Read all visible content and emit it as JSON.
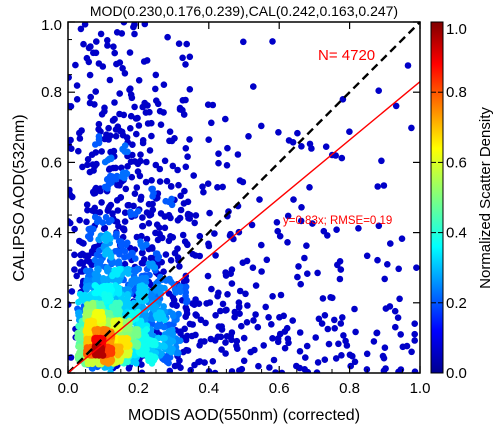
{
  "chart_data": {
    "type": "scatter",
    "title": "MOD(0.230,0.176,0.239),CAL(0.242,0.163,0.247)",
    "xlabel": "MODIS AOD(550nm) (corrected)",
    "ylabel": "CALIPSO AOD(532nm)",
    "xlim": [
      0.0,
      1.0
    ],
    "ylim": [
      0.0,
      1.0
    ],
    "x_ticks": [
      "0.0",
      "0.2",
      "0.4",
      "0.6",
      "0.8",
      "1.0"
    ],
    "y_ticks": [
      "0.0",
      "0.2",
      "0.4",
      "0.6",
      "0.8",
      "1.0"
    ],
    "grid": false,
    "n_points_label": "N= 4720",
    "n_points": 4720,
    "fit_label": "y=0.83x; RMSE=0.19",
    "fit": {
      "slope": 0.83,
      "intercept": 0.0,
      "rmse": 0.19
    },
    "one_to_one_line": true,
    "colorbar": {
      "label": "Normalized Scatter Density",
      "range": [
        0.0,
        1.0
      ],
      "ticks": [
        "0.0",
        "0.2",
        "0.4",
        "0.6",
        "0.8",
        "1.0"
      ],
      "colormap": "jet"
    },
    "density_summary": {
      "note_values": "point cloud densest near MODIS 0.08-0.15, CALIPSO 0.04-0.12",
      "peak": [
        0.12,
        0.08
      ]
    }
  },
  "colors": {
    "fit_line": "#ff0000",
    "annotation_text": "#ff0000",
    "one_to_one_line": "#000000",
    "low_density": "#0000c8",
    "high_density": "#d40000"
  }
}
